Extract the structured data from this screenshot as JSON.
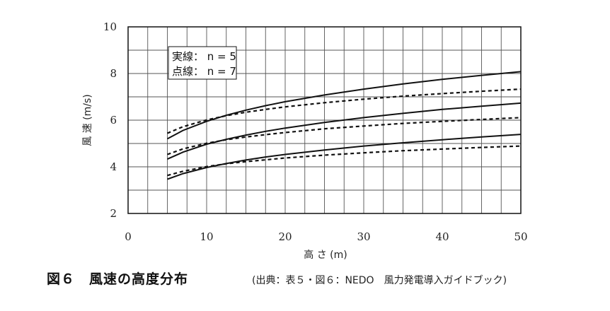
{
  "chart_data": {
    "type": "line",
    "xlabel": "高 さ (m)",
    "ylabel": "風 速 (m/s)",
    "xlim": [
      0,
      50
    ],
    "ylim": [
      2,
      10
    ],
    "x_ticks": [
      "0",
      "10",
      "20",
      "30",
      "40",
      "50"
    ],
    "y_ticks": [
      "2",
      "4",
      "6",
      "8",
      "10"
    ],
    "grid": true,
    "legend": {
      "placement": "top-left",
      "entries": [
        "実線： n = 5",
        "点線： n = 7"
      ]
    },
    "x": [
      5,
      7,
      10,
      12.5,
      15,
      17.5,
      20,
      25,
      30,
      35,
      40,
      45,
      50
    ],
    "series": [
      {
        "style": "solid",
        "values": [
          5.2,
          5.56,
          5.95,
          6.21,
          6.43,
          6.62,
          6.79,
          7.08,
          7.33,
          7.55,
          7.75,
          7.92,
          8.08
        ]
      },
      {
        "style": "dashed",
        "values": [
          5.44,
          5.72,
          6.01,
          6.19,
          6.34,
          6.46,
          6.57,
          6.75,
          6.9,
          7.03,
          7.14,
          7.24,
          7.33
        ]
      },
      {
        "style": "solid",
        "values": [
          4.33,
          4.63,
          4.97,
          5.18,
          5.36,
          5.52,
          5.66,
          5.9,
          6.11,
          6.29,
          6.46,
          6.6,
          6.73
        ]
      },
      {
        "style": "dashed",
        "values": [
          4.53,
          4.77,
          5.01,
          5.16,
          5.28,
          5.38,
          5.47,
          5.63,
          5.75,
          5.86,
          5.95,
          6.03,
          6.11
        ]
      },
      {
        "style": "solid",
        "values": [
          3.47,
          3.71,
          3.97,
          4.14,
          4.29,
          4.42,
          4.53,
          4.72,
          4.89,
          5.03,
          5.16,
          5.28,
          5.39
        ]
      },
      {
        "style": "dashed",
        "values": [
          3.63,
          3.81,
          4.01,
          4.13,
          4.22,
          4.3,
          4.38,
          4.5,
          4.6,
          4.69,
          4.76,
          4.83,
          4.89
        ]
      }
    ]
  },
  "caption": {
    "title": "図６　風速の高度分布",
    "source": "(出典：表５・図６：NEDO　風力発電導入ガイドブック)"
  }
}
